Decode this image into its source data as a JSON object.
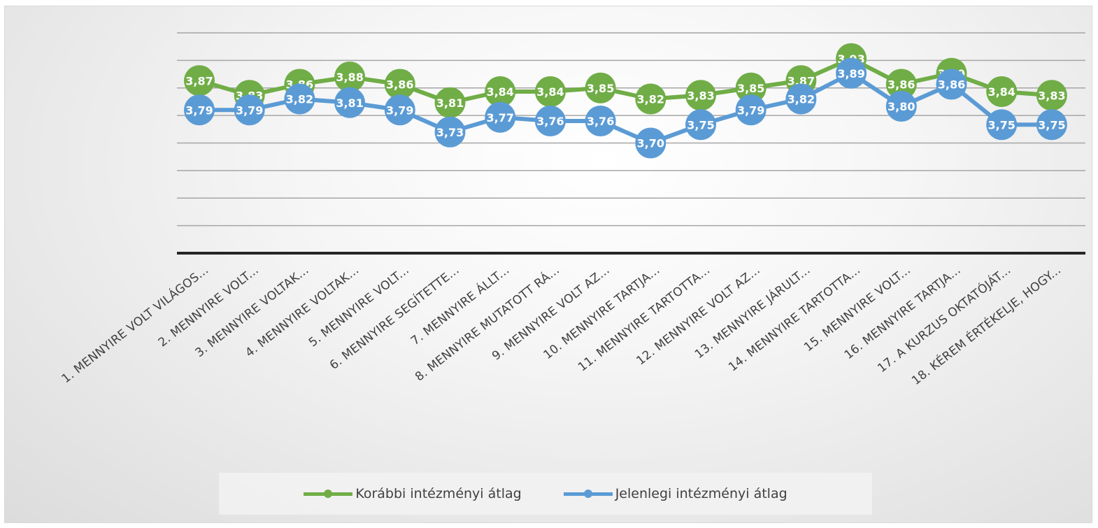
{
  "chart_data": {
    "type": "line",
    "categories": [
      "1. MENNYIRE VOLT VILÁGOS...",
      "2. MENNYIRE VOLT...",
      "3. MENNYIRE VOLTAK...",
      "4. MENNYIRE VOLTAK...",
      "5. MENNYIRE VOLT...",
      "6. MENNYIRE SEGÍTETTE...",
      "7. MENNYIRE ÁLLT...",
      "8. MENNYIRE MUTATOTT RÁ...",
      "9. MENNYIRE VOLT AZ...",
      "10. MENNYIRE TARTJA...",
      "11. MENNYIRE TARTOTTA...",
      "12. MENNYIRE VOLT AZ...",
      "13. MENNYIRE JÁRULT...",
      "14. MENNYIRE TARTOTTA...",
      "15. MENNYIRE VOLT...",
      "16. MENNYIRE TARTJA...",
      "17. A KURZUS OKTATÓJÁT...",
      "18. KÉREM ÉRTÉKELJE, HOGY..."
    ],
    "series": [
      {
        "name": "Korábbi intézményi átlag",
        "color": "#70ad47",
        "values": [
          3.87,
          3.83,
          3.86,
          3.88,
          3.86,
          3.81,
          3.84,
          3.84,
          3.85,
          3.82,
          3.83,
          3.85,
          3.87,
          3.93,
          3.86,
          3.89,
          3.84,
          3.83
        ],
        "labels": [
          "3,87",
          "3,83",
          "3,86",
          "3,88",
          "3,86",
          "3,81",
          "3,84",
          "3,84",
          "3,85",
          "3,82",
          "3,83",
          "3,85",
          "3,87",
          "3,93",
          "3,86",
          "3,89",
          "3,84",
          "3,83"
        ]
      },
      {
        "name": "Jelenlegi intézményi átlag",
        "color": "#5b9bd5",
        "values": [
          3.79,
          3.79,
          3.82,
          3.81,
          3.79,
          3.73,
          3.77,
          3.76,
          3.76,
          3.7,
          3.75,
          3.79,
          3.82,
          3.89,
          3.8,
          3.86,
          3.75,
          3.75
        ],
        "labels": [
          "3,79",
          "3,79",
          "3,82",
          "3,81",
          "3,79",
          "3,73",
          "3,77",
          "3,76",
          "3,76",
          "3,70",
          "3,75",
          "3,79",
          "3,82",
          "3,89",
          "3,80",
          "3,86",
          "3,75",
          "3,75"
        ]
      }
    ],
    "ylim": [
      3.4,
      4.0
    ],
    "grid": true,
    "legend_position": "bottom"
  }
}
